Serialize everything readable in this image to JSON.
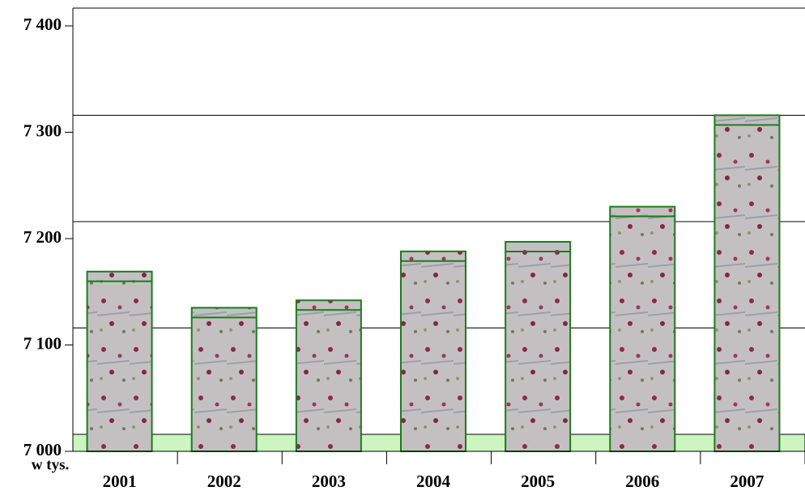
{
  "chart_data": {
    "type": "bar",
    "y_unit_label": "w tys.",
    "categories": [
      "2001",
      "2002",
      "2003",
      "2004",
      "2005",
      "2006",
      "2007"
    ],
    "values": [
      7169,
      7135,
      7142,
      7188,
      7197,
      7230,
      7316
    ],
    "color": "#b9b3b6",
    "edge_color": "#1d7a1d",
    "floor_color": "#ccf5c0",
    "ylim": [
      7000,
      7400
    ],
    "yticks": [
      {
        "value": 7000,
        "label": "7 000"
      },
      {
        "value": 7100,
        "label": "7 100"
      },
      {
        "value": 7200,
        "label": "7 200"
      },
      {
        "value": 7300,
        "label": "7 300"
      },
      {
        "value": 7400,
        "label": "7 400"
      }
    ],
    "grid": true
  }
}
